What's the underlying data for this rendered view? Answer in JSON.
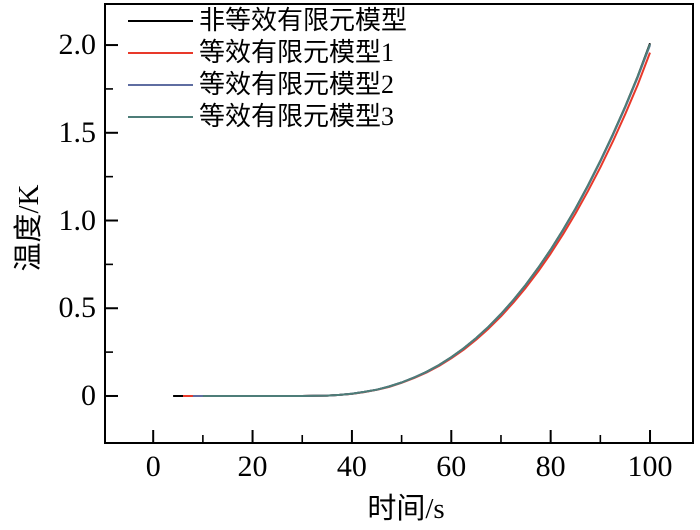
{
  "figure": {
    "background": "#ffffff",
    "axis_color": "#000000"
  },
  "legend": {
    "items": [
      {
        "label": "非等效有限元模型",
        "color": "#000000"
      },
      {
        "label": "等效有限元模型1",
        "color": "#e8392a"
      },
      {
        "label": "等效有限元模型2",
        "color": "#5f6da1"
      },
      {
        "label": "等效有限元模型3",
        "color": "#4d7d78"
      }
    ]
  },
  "chart_data": {
    "type": "line",
    "title": "",
    "xlabel": "时间/s",
    "ylabel": "温度/K",
    "xlim": [
      -9.7,
      108.65
    ],
    "ylim": [
      -0.268,
      2.234
    ],
    "grid": false,
    "legend_position": "top-left-inside",
    "x_major_ticks": [
      0,
      20,
      40,
      60,
      80,
      100
    ],
    "x_minor_ticks": [
      10,
      30,
      50,
      70,
      90
    ],
    "x_tick_labels": [
      "0",
      "20",
      "40",
      "60",
      "80",
      "100"
    ],
    "y_major_ticks": [
      0,
      0.5,
      1.0,
      1.5,
      2.0
    ],
    "y_minor_ticks": [
      0.25,
      0.75,
      1.25,
      1.75
    ],
    "y_tick_labels": [
      "0",
      "0.5",
      "1.0",
      "1.5",
      "2.0"
    ],
    "series": [
      {
        "name": "非等效有限元模型",
        "color": "#000000",
        "points": [
          [
            4,
            0
          ],
          [
            10,
            0
          ],
          [
            15,
            0
          ],
          [
            20,
            0
          ],
          [
            25,
            0
          ],
          [
            30,
            0
          ],
          [
            32.5,
            0.001
          ],
          [
            35,
            0.002
          ],
          [
            37.5,
            0.006
          ],
          [
            40,
            0.013
          ],
          [
            42.5,
            0.023
          ],
          [
            45,
            0.036
          ],
          [
            47.5,
            0.054
          ],
          [
            50,
            0.077
          ],
          [
            52.5,
            0.105
          ],
          [
            55,
            0.137
          ],
          [
            57.5,
            0.176
          ],
          [
            60,
            0.221
          ],
          [
            62.5,
            0.272
          ],
          [
            65,
            0.33
          ],
          [
            67.5,
            0.395
          ],
          [
            70,
            0.467
          ],
          [
            72.5,
            0.547
          ],
          [
            75,
            0.634
          ],
          [
            77.5,
            0.73
          ],
          [
            80,
            0.834
          ],
          [
            82.5,
            0.947
          ],
          [
            85,
            1.068
          ],
          [
            87.5,
            1.199
          ],
          [
            90,
            1.339
          ],
          [
            92.5,
            1.49
          ],
          [
            95,
            1.649
          ],
          [
            97.5,
            1.82
          ],
          [
            100,
            2.01
          ]
        ]
      },
      {
        "name": "等效有限元模型1",
        "color": "#e8392a",
        "points": [
          [
            6,
            0
          ],
          [
            10,
            0
          ],
          [
            15,
            0
          ],
          [
            20,
            0
          ],
          [
            25,
            0
          ],
          [
            30,
            0
          ],
          [
            32.5,
            0.001
          ],
          [
            35,
            0.002
          ],
          [
            37.5,
            0.006
          ],
          [
            40,
            0.012
          ],
          [
            42.5,
            0.022
          ],
          [
            45,
            0.035
          ],
          [
            47.5,
            0.052
          ],
          [
            50,
            0.075
          ],
          [
            52.5,
            0.102
          ],
          [
            55,
            0.133
          ],
          [
            57.5,
            0.171
          ],
          [
            60,
            0.215
          ],
          [
            62.5,
            0.264
          ],
          [
            65,
            0.321
          ],
          [
            67.5,
            0.384
          ],
          [
            70,
            0.454
          ],
          [
            72.5,
            0.532
          ],
          [
            75,
            0.617
          ],
          [
            77.5,
            0.71
          ],
          [
            80,
            0.812
          ],
          [
            82.5,
            0.922
          ],
          [
            85,
            1.04
          ],
          [
            87.5,
            1.167
          ],
          [
            90,
            1.303
          ],
          [
            92.5,
            1.45
          ],
          [
            95,
            1.606
          ],
          [
            97.5,
            1.772
          ],
          [
            100,
            1.957
          ]
        ]
      },
      {
        "name": "等效有限元模型2",
        "color": "#5f6da1",
        "points": [
          [
            8,
            0
          ],
          [
            10,
            0
          ],
          [
            15,
            0
          ],
          [
            20,
            0
          ],
          [
            25,
            0
          ],
          [
            30,
            0
          ],
          [
            32.5,
            0.001
          ],
          [
            35,
            0.002
          ],
          [
            37.5,
            0.006
          ],
          [
            40,
            0.013
          ],
          [
            42.5,
            0.023
          ],
          [
            45,
            0.036
          ],
          [
            47.5,
            0.054
          ],
          [
            50,
            0.077
          ],
          [
            52.5,
            0.105
          ],
          [
            55,
            0.136
          ],
          [
            57.5,
            0.175
          ],
          [
            60,
            0.22
          ],
          [
            62.5,
            0.271
          ],
          [
            65,
            0.329
          ],
          [
            67.5,
            0.394
          ],
          [
            70,
            0.465
          ],
          [
            72.5,
            0.545
          ],
          [
            75,
            0.632
          ],
          [
            77.5,
            0.728
          ],
          [
            80,
            0.831
          ],
          [
            82.5,
            0.944
          ],
          [
            85,
            1.064
          ],
          [
            87.5,
            1.195
          ],
          [
            90,
            1.335
          ],
          [
            92.5,
            1.485
          ],
          [
            95,
            1.644
          ],
          [
            97.5,
            1.814
          ],
          [
            100,
            2.0
          ]
        ]
      },
      {
        "name": "等效有限元模型3",
        "color": "#4d7d78",
        "points": [
          [
            10,
            0
          ],
          [
            15,
            0
          ],
          [
            20,
            0
          ],
          [
            25,
            0
          ],
          [
            30,
            0
          ],
          [
            32.5,
            0.001
          ],
          [
            35,
            0.002
          ],
          [
            37.5,
            0.006
          ],
          [
            40,
            0.013
          ],
          [
            42.5,
            0.023
          ],
          [
            45,
            0.036
          ],
          [
            47.5,
            0.054
          ],
          [
            50,
            0.077
          ],
          [
            52.5,
            0.105
          ],
          [
            55,
            0.137
          ],
          [
            57.5,
            0.176
          ],
          [
            60,
            0.221
          ],
          [
            62.5,
            0.272
          ],
          [
            65,
            0.33
          ],
          [
            67.5,
            0.395
          ],
          [
            70,
            0.467
          ],
          [
            72.5,
            0.547
          ],
          [
            75,
            0.634
          ],
          [
            77.5,
            0.73
          ],
          [
            80,
            0.834
          ],
          [
            82.5,
            0.947
          ],
          [
            85,
            1.068
          ],
          [
            87.5,
            1.199
          ],
          [
            90,
            1.339
          ],
          [
            92.5,
            1.49
          ],
          [
            95,
            1.649
          ],
          [
            97.5,
            1.82
          ],
          [
            100,
            2.005
          ]
        ]
      }
    ]
  }
}
